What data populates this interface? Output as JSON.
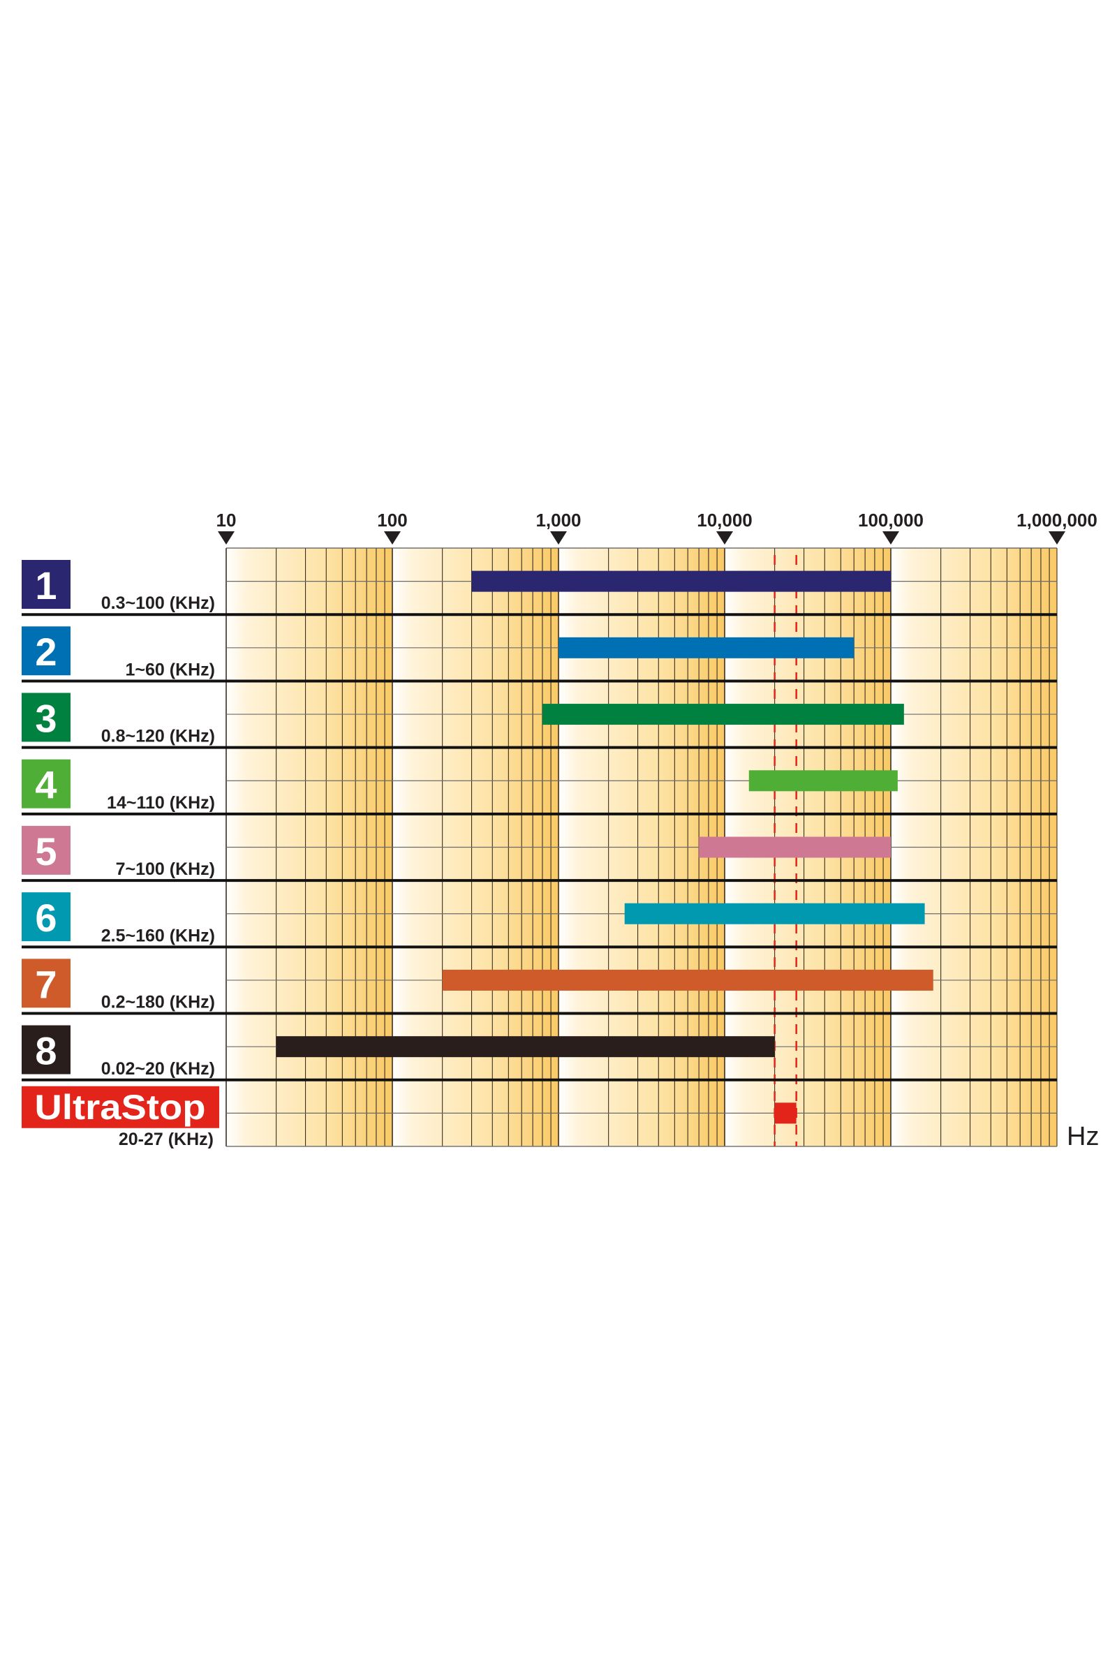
{
  "chart_data": {
    "type": "bar",
    "subtype": "horizontal-range-log",
    "x_scale": "log",
    "xlim": [
      10,
      1000000
    ],
    "x_ticks": [
      "10",
      "100",
      "1,000",
      "10,000",
      "100,000",
      "1,000,000"
    ],
    "x_tick_values": [
      10,
      100,
      1000,
      10000,
      100000,
      1000000
    ],
    "x_unit": "Hz",
    "grid": true,
    "reference_lines": {
      "values_hz": [
        20000,
        27000
      ],
      "style": "dashed",
      "color": "#e3241b"
    },
    "series": [
      {
        "id": "1",
        "label": "0.3~100 (KHz)",
        "range_hz": [
          300,
          100000
        ],
        "color": "#2b2670"
      },
      {
        "id": "2",
        "label": "1~60 (KHz)",
        "range_hz": [
          1000,
          60000
        ],
        "color": "#0070b5"
      },
      {
        "id": "3",
        "label": "0.8~120 (KHz)",
        "range_hz": [
          800,
          120000
        ],
        "color": "#00813f"
      },
      {
        "id": "4",
        "label": "14~110 (KHz)",
        "range_hz": [
          14000,
          110000
        ],
        "color": "#4fae35"
      },
      {
        "id": "5",
        "label": "7~100 (KHz)",
        "range_hz": [
          7000,
          100000
        ],
        "color": "#cf7893"
      },
      {
        "id": "6",
        "label": "2.5~160 (KHz)",
        "range_hz": [
          2500,
          160000
        ],
        "color": "#0099b0"
      },
      {
        "id": "7",
        "label": "0.2~180 (KHz)",
        "range_hz": [
          200,
          180000
        ],
        "color": "#cf5b2b"
      },
      {
        "id": "8",
        "label": "0.02~20 (KHz)",
        "range_hz": [
          20,
          20000
        ],
        "color": "#2a1e1c"
      },
      {
        "id": "UltraStop",
        "label": "20-27 (KHz)",
        "range_hz": [
          20000,
          27000
        ],
        "color": "#e3241b"
      }
    ]
  }
}
